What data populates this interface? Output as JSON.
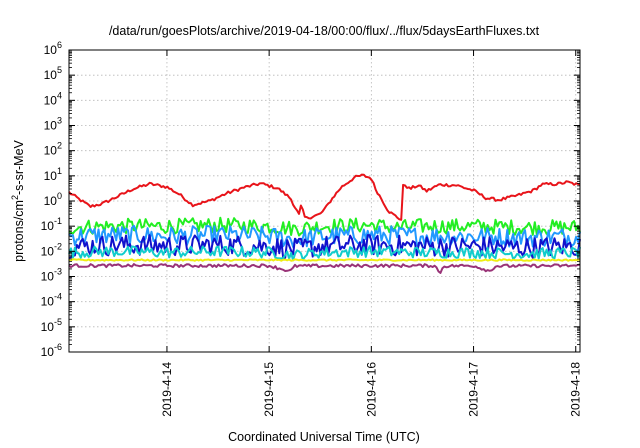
{
  "chart_data": {
    "type": "line",
    "title": "/data/run/goesPlots/archive/2019-04-18/00:00/flux/../flux/5daysEarthFluxes.txt",
    "xlabel": "Coordinated Universal Time (UTC)",
    "ylabel": "protons/cm²-s-sr-MeV",
    "yscale": "log",
    "grid": true,
    "ylim": [
      1e-06,
      1000000.0
    ],
    "xlim": [
      "2019-04-13T01:00",
      "2019-04-18T01:00"
    ],
    "y_ticks": [
      {
        "value": 1e-06,
        "base": "10",
        "exp": "-6"
      },
      {
        "value": 1e-05,
        "base": "10",
        "exp": "-5"
      },
      {
        "value": 0.0001,
        "base": "10",
        "exp": "-4"
      },
      {
        "value": 0.001,
        "base": "10",
        "exp": "-3"
      },
      {
        "value": 0.01,
        "base": "10",
        "exp": "-2"
      },
      {
        "value": 0.1,
        "base": "10",
        "exp": "-1"
      },
      {
        "value": 1,
        "base": "10",
        "exp": "0"
      },
      {
        "value": 10,
        "base": "10",
        "exp": "1"
      },
      {
        "value": 100,
        "base": "10",
        "exp": "2"
      },
      {
        "value": 1000,
        "base": "10",
        "exp": "3"
      },
      {
        "value": 10000,
        "base": "10",
        "exp": "4"
      },
      {
        "value": 100000,
        "base": "10",
        "exp": "5"
      },
      {
        "value": 1000000,
        "base": "10",
        "exp": "6"
      }
    ],
    "x_ticks": [
      {
        "value": "2019-04-14T00:00",
        "label": "2019-4-14"
      },
      {
        "value": "2019-04-15T00:00",
        "label": "2019-4-15"
      },
      {
        "value": "2019-04-16T00:00",
        "label": "2019-4-16"
      },
      {
        "value": "2019-04-17T00:00",
        "label": "2019-4-17"
      },
      {
        "value": "2019-04-18T00:00",
        "label": "2019-4-18"
      }
    ],
    "series": [
      {
        "color": "#e8141a",
        "jitter": 0.06,
        "points": [
          [
            "2019-04-13T01:00",
            2.2
          ],
          [
            "2019-04-13T04:00",
            1.0
          ],
          [
            "2019-04-13T06:00",
            0.6
          ],
          [
            "2019-04-13T09:00",
            0.8
          ],
          [
            "2019-04-13T12:00",
            1.4
          ],
          [
            "2019-04-13T16:00",
            3.0
          ],
          [
            "2019-04-13T20:00",
            4.8
          ],
          [
            "2019-04-14T00:00",
            3.6
          ],
          [
            "2019-04-14T03:00",
            1.8
          ],
          [
            "2019-04-14T06:00",
            0.7
          ],
          [
            "2019-04-14T10:00",
            1.0
          ],
          [
            "2019-04-14T14:00",
            2.0
          ],
          [
            "2019-04-14T18:00",
            3.4
          ],
          [
            "2019-04-14T22:00",
            5.0
          ],
          [
            "2019-04-15T02:00",
            3.2
          ],
          [
            "2019-04-15T05:00",
            1.3
          ],
          [
            "2019-04-15T06:00",
            0.6
          ],
          [
            "2019-04-15T07:00",
            0.28
          ],
          [
            "2019-04-15T07:30",
            0.65
          ],
          [
            "2019-04-15T08:30",
            0.2
          ],
          [
            "2019-04-15T12:00",
            0.3
          ],
          [
            "2019-04-15T13:30",
            0.6
          ],
          [
            "2019-04-15T15:00",
            1.4
          ],
          [
            "2019-04-15T17:00",
            3.6
          ],
          [
            "2019-04-15T20:00",
            8.5
          ],
          [
            "2019-04-15T22:00",
            10.5
          ],
          [
            "2019-04-16T00:00",
            8.0
          ],
          [
            "2019-04-16T01:00",
            3.0
          ],
          [
            "2019-04-16T03:00",
            0.8
          ],
          [
            "2019-04-16T04:00",
            0.4
          ],
          [
            "2019-04-16T05:00",
            0.3
          ],
          [
            "2019-04-16T07:00",
            0.18
          ],
          [
            "2019-04-16T07:30",
            5.0
          ],
          [
            "2019-04-16T09:00",
            3.0
          ],
          [
            "2019-04-16T11:00",
            4.2
          ],
          [
            "2019-04-16T13:00",
            2.5
          ],
          [
            "2019-04-16T16:00",
            4.5
          ],
          [
            "2019-04-16T20:00",
            4.2
          ],
          [
            "2019-04-17T00:00",
            2.6
          ],
          [
            "2019-04-17T03:00",
            1.3
          ],
          [
            "2019-04-17T06:00",
            1.1
          ],
          [
            "2019-04-17T10:00",
            1.6
          ],
          [
            "2019-04-17T14:00",
            2.6
          ],
          [
            "2019-04-17T16:00",
            4.5
          ],
          [
            "2019-04-17T20:00",
            4.8
          ],
          [
            "2019-04-17T22:00",
            5.6
          ],
          [
            "2019-04-18T01:00",
            4.2
          ]
        ]
      },
      {
        "color": "#22ee22",
        "jitter": 0.3,
        "points": [
          [
            "2019-04-13T01:00",
            0.09
          ],
          [
            "2019-04-13T12:00",
            0.1
          ],
          [
            "2019-04-14T00:00",
            0.1
          ],
          [
            "2019-04-14T12:00",
            0.11
          ],
          [
            "2019-04-15T00:00",
            0.1
          ],
          [
            "2019-04-15T06:00",
            0.08
          ],
          [
            "2019-04-15T12:00",
            0.1
          ],
          [
            "2019-04-16T00:00",
            0.11
          ],
          [
            "2019-04-16T06:00",
            0.09
          ],
          [
            "2019-04-16T12:00",
            0.1
          ],
          [
            "2019-04-17T00:00",
            0.1
          ],
          [
            "2019-04-17T12:00",
            0.09
          ],
          [
            "2019-04-18T01:00",
            0.09
          ]
        ]
      },
      {
        "color": "#2299ff",
        "jitter": 0.38,
        "points": [
          [
            "2019-04-13T01:00",
            0.04
          ],
          [
            "2019-04-13T12:00",
            0.045
          ],
          [
            "2019-04-14T00:00",
            0.04
          ],
          [
            "2019-04-14T12:00",
            0.045
          ],
          [
            "2019-04-15T00:00",
            0.04
          ],
          [
            "2019-04-15T06:00",
            0.03
          ],
          [
            "2019-04-15T12:00",
            0.04
          ],
          [
            "2019-04-16T00:00",
            0.045
          ],
          [
            "2019-04-16T12:00",
            0.04
          ],
          [
            "2019-04-17T00:00",
            0.04
          ],
          [
            "2019-04-17T12:00",
            0.035
          ],
          [
            "2019-04-18T01:00",
            0.04
          ]
        ]
      },
      {
        "color": "#1111cc",
        "jitter": 0.42,
        "points": [
          [
            "2019-04-13T01:00",
            0.015
          ],
          [
            "2019-04-13T12:00",
            0.018
          ],
          [
            "2019-04-14T00:00",
            0.017
          ],
          [
            "2019-04-14T12:00",
            0.018
          ],
          [
            "2019-04-15T00:00",
            0.016
          ],
          [
            "2019-04-15T06:00",
            0.012
          ],
          [
            "2019-04-15T12:00",
            0.016
          ],
          [
            "2019-04-16T00:00",
            0.018
          ],
          [
            "2019-04-16T12:00",
            0.016
          ],
          [
            "2019-04-17T00:00",
            0.016
          ],
          [
            "2019-04-17T12:00",
            0.014
          ],
          [
            "2019-04-18T01:00",
            0.016
          ]
        ]
      },
      {
        "color": "#11cccc",
        "jitter": 0.22,
        "points": [
          [
            "2019-04-13T01:00",
            0.009
          ],
          [
            "2019-04-13T12:00",
            0.01
          ],
          [
            "2019-04-14T00:00",
            0.009
          ],
          [
            "2019-04-14T12:00",
            0.01
          ],
          [
            "2019-04-15T00:00",
            0.009
          ],
          [
            "2019-04-15T06:00",
            0.007
          ],
          [
            "2019-04-15T12:00",
            0.009
          ],
          [
            "2019-04-16T00:00",
            0.01
          ],
          [
            "2019-04-16T12:00",
            0.009
          ],
          [
            "2019-04-17T00:00",
            0.009
          ],
          [
            "2019-04-17T12:00",
            0.008
          ],
          [
            "2019-04-18T01:00",
            0.009
          ]
        ]
      },
      {
        "color": "#eeee11",
        "jitter": 0.03,
        "points": [
          [
            "2019-04-13T01:00",
            0.0045
          ],
          [
            "2019-04-14T00:00",
            0.0045
          ],
          [
            "2019-04-15T00:00",
            0.0045
          ],
          [
            "2019-04-16T00:00",
            0.0045
          ],
          [
            "2019-04-17T00:00",
            0.0045
          ],
          [
            "2019-04-18T01:00",
            0.0045
          ]
        ]
      },
      {
        "color": "#993377",
        "jitter": 0.06,
        "points": [
          [
            "2019-04-13T01:00",
            0.0027
          ],
          [
            "2019-04-13T12:00",
            0.0027
          ],
          [
            "2019-04-14T00:00",
            0.0027
          ],
          [
            "2019-04-15T00:00",
            0.0027
          ],
          [
            "2019-04-15T05:00",
            0.0016
          ],
          [
            "2019-04-15T06:00",
            0.0026
          ],
          [
            "2019-04-16T00:00",
            0.0027
          ],
          [
            "2019-04-16T15:00",
            0.0027
          ],
          [
            "2019-04-16T16:00",
            0.0013
          ],
          [
            "2019-04-16T17:00",
            0.0026
          ],
          [
            "2019-04-17T00:00",
            0.0027
          ],
          [
            "2019-04-17T04:00",
            0.0016
          ],
          [
            "2019-04-17T05:00",
            0.0026
          ],
          [
            "2019-04-18T01:00",
            0.0027
          ]
        ]
      }
    ]
  }
}
